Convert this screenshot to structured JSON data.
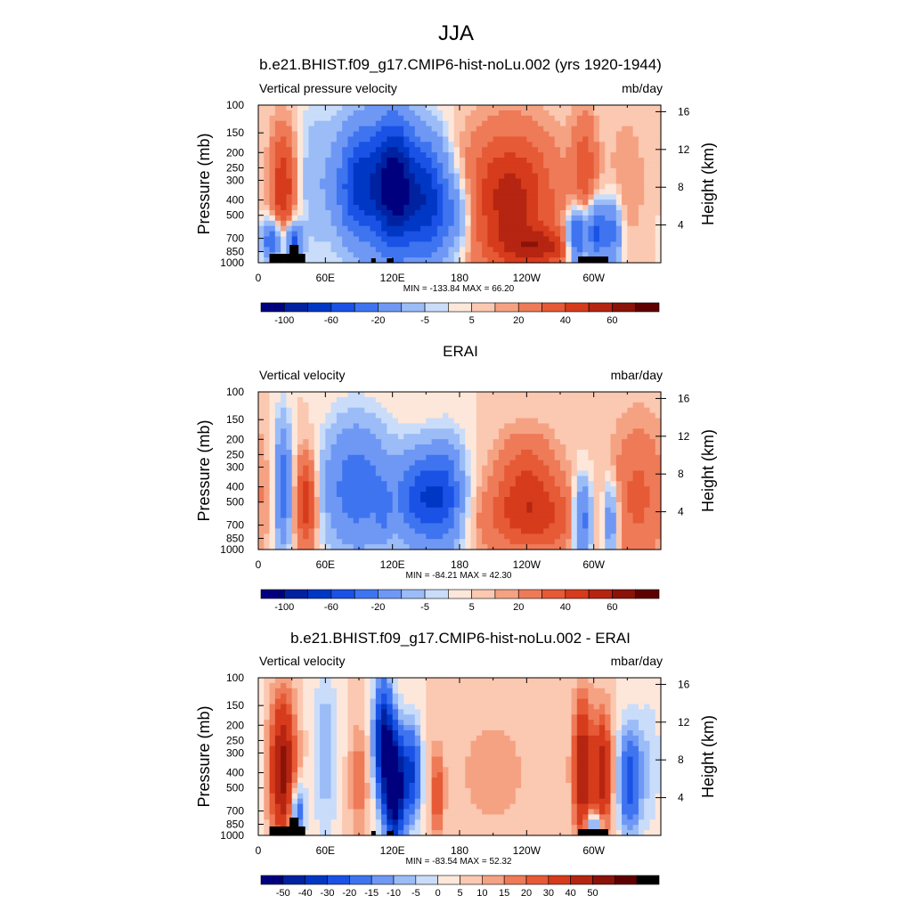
{
  "figure": {
    "title": "JJA",
    "colors": {
      "palette": [
        "#00007f",
        "#0022a0",
        "#0037c4",
        "#1a52e6",
        "#3f74f0",
        "#6e98f4",
        "#9bbcf7",
        "#c9dcfa",
        "#fde7da",
        "#fbc8b1",
        "#f5a283",
        "#ee7a58",
        "#e65a36",
        "#d63b1c",
        "#b52511",
        "#8b1208",
        "#5e0000"
      ],
      "contour": "#000000"
    }
  },
  "chart_data": [
    {
      "type": "heatmap",
      "name": "model",
      "title": "b.e21.BHIST.f09_g17.CMIP6-hist-noLu.002 (yrs 1920-1944)",
      "left_label": "Vertical pressure velocity",
      "right_label": "mb/day",
      "ylabel": "Pressure (mb)",
      "y2label": "Height (km)",
      "x_ticks": [
        "0",
        "60E",
        "120E",
        "180",
        "120W",
        "60W"
      ],
      "x_tick_lon": [
        0,
        60,
        120,
        180,
        240,
        300
      ],
      "xlim": [
        0,
        360
      ],
      "y_ticks": [
        "100",
        "150",
        "200",
        "250",
        "300",
        "400",
        "500",
        "700",
        "850",
        "1000"
      ],
      "y_tick_p": [
        100,
        150,
        200,
        250,
        300,
        400,
        500,
        700,
        850,
        1000
      ],
      "ylim": [
        100,
        1000
      ],
      "y2_ticks": [
        "4",
        "8",
        "12",
        "16"
      ],
      "y2_tick_km": [
        4,
        8,
        12,
        16
      ],
      "stats": "MIN = -133.84  MAX =  66.20",
      "min": -133.84,
      "max": 66.2,
      "colorbar_levels": [
        -120,
        -100,
        -80,
        -60,
        -40,
        -20,
        -10,
        -5,
        0,
        5,
        10,
        20,
        30,
        40,
        50,
        60
      ],
      "colorbar_labels": [
        "-100",
        "-60",
        "-20",
        "-5",
        "5",
        "20",
        "40",
        "60"
      ],
      "colorbar_label_at": [
        1,
        3,
        5,
        7,
        9,
        11,
        13,
        15
      ],
      "terrain": true,
      "features": [
        {
          "lon": 22,
          "p_center": 330,
          "p_width": 200,
          "lon_width": 8,
          "amp": 40
        },
        {
          "lon": 12,
          "p_center": 720,
          "p_width": 150,
          "lon_width": 6,
          "amp": -60
        },
        {
          "lon": 32,
          "p_center": 750,
          "p_width": 150,
          "lon_width": 5,
          "amp": -70
        },
        {
          "lon": 50,
          "p_center": 300,
          "p_width": 250,
          "lon_width": 10,
          "amp": -15
        },
        {
          "lon": 92,
          "p_center": 320,
          "p_width": 200,
          "lon_width": 16,
          "amp": -90
        },
        {
          "lon": 122,
          "p_center": 320,
          "p_width": 220,
          "lon_width": 12,
          "amp": -120
        },
        {
          "lon": 150,
          "p_center": 400,
          "p_width": 250,
          "lon_width": 14,
          "amp": -90
        },
        {
          "lon": 175,
          "p_center": 500,
          "p_width": 200,
          "lon_width": 12,
          "amp": -30
        },
        {
          "lon": 225,
          "p_center": 400,
          "p_width": 300,
          "lon_width": 30,
          "amp": 45
        },
        {
          "lon": 255,
          "p_center": 800,
          "p_width": 150,
          "lon_width": 25,
          "amp": 30
        },
        {
          "lon": 285,
          "p_center": 700,
          "p_width": 200,
          "lon_width": 6,
          "amp": -80
        },
        {
          "lon": 302,
          "p_center": 650,
          "p_width": 200,
          "lon_width": 5,
          "amp": -70
        },
        {
          "lon": 316,
          "p_center": 650,
          "p_width": 220,
          "lon_width": 6,
          "amp": -50
        },
        {
          "lon": 292,
          "p_center": 250,
          "p_width": 150,
          "lon_width": 8,
          "amp": 25
        },
        {
          "lon": 330,
          "p_center": 300,
          "p_width": 200,
          "lon_width": 12,
          "amp": 10
        }
      ]
    },
    {
      "type": "heatmap",
      "name": "erai",
      "title": "ERAI",
      "left_label": "Vertical velocity",
      "right_label": "mbar/day",
      "ylabel": "Pressure (mb)",
      "y2label": "Height (km)",
      "x_ticks": [
        "0",
        "60E",
        "120E",
        "180",
        "120W",
        "60W"
      ],
      "x_tick_lon": [
        0,
        60,
        120,
        180,
        240,
        300
      ],
      "xlim": [
        0,
        360
      ],
      "y_ticks": [
        "100",
        "150",
        "200",
        "250",
        "300",
        "400",
        "500",
        "700",
        "850",
        "1000"
      ],
      "y_tick_p": [
        100,
        150,
        200,
        250,
        300,
        400,
        500,
        700,
        850,
        1000
      ],
      "ylim": [
        100,
        1000
      ],
      "y2_ticks": [
        "4",
        "8",
        "12",
        "16"
      ],
      "y2_tick_km": [
        4,
        8,
        12,
        16
      ],
      "stats": "MIN = -84.21  MAX =  42.30",
      "min": -84.21,
      "max": 42.3,
      "colorbar_levels": [
        -120,
        -100,
        -80,
        -60,
        -40,
        -20,
        -10,
        -5,
        0,
        5,
        10,
        20,
        30,
        40,
        50,
        60
      ],
      "colorbar_labels": [
        "-100",
        "-60",
        "-20",
        "-5",
        "5",
        "20",
        "40",
        "60"
      ],
      "colorbar_label_at": [
        1,
        3,
        5,
        7,
        9,
        11,
        13,
        15
      ],
      "terrain": false,
      "features": [
        {
          "lon": 22,
          "p_center": 400,
          "p_width": 250,
          "lon_width": 5,
          "amp": -55
        },
        {
          "lon": 43,
          "p_center": 500,
          "p_width": 250,
          "lon_width": 7,
          "amp": 40
        },
        {
          "lon": 88,
          "p_center": 400,
          "p_width": 250,
          "lon_width": 20,
          "amp": -55
        },
        {
          "lon": 112,
          "p_center": 600,
          "p_width": 200,
          "lon_width": 5,
          "amp": -20
        },
        {
          "lon": 150,
          "p_center": 470,
          "p_width": 220,
          "lon_width": 18,
          "amp": -80
        },
        {
          "lon": 170,
          "p_center": 450,
          "p_width": 250,
          "lon_width": 10,
          "amp": -30
        },
        {
          "lon": 240,
          "p_center": 330,
          "p_width": 150,
          "lon_width": 20,
          "amp": 25
        },
        {
          "lon": 245,
          "p_center": 650,
          "p_width": 250,
          "lon_width": 35,
          "amp": 30
        },
        {
          "lon": 290,
          "p_center": 650,
          "p_width": 250,
          "lon_width": 6,
          "amp": -60
        },
        {
          "lon": 315,
          "p_center": 650,
          "p_width": 250,
          "lon_width": 5,
          "amp": -40
        },
        {
          "lon": 340,
          "p_center": 450,
          "p_width": 350,
          "lon_width": 18,
          "amp": 22
        }
      ]
    },
    {
      "type": "heatmap",
      "name": "difference",
      "title": "b.e21.BHIST.f09_g17.CMIP6-hist-noLu.002 - ERAI",
      "left_label": "Vertical velocity",
      "right_label": "mbar/day",
      "ylabel": "Pressure (mb)",
      "y2label": "Height (km)",
      "x_ticks": [
        "0",
        "60E",
        "120E",
        "180",
        "120W",
        "60W"
      ],
      "x_tick_lon": [
        0,
        60,
        120,
        180,
        240,
        300
      ],
      "xlim": [
        0,
        360
      ],
      "y_ticks": [
        "100",
        "150",
        "200",
        "250",
        "300",
        "400",
        "500",
        "700",
        "850",
        "1000"
      ],
      "y_tick_p": [
        100,
        150,
        200,
        250,
        300,
        400,
        500,
        700,
        850,
        1000
      ],
      "ylim": [
        100,
        1000
      ],
      "y2_ticks": [
        "4",
        "8",
        "12",
        "16"
      ],
      "y2_tick_km": [
        4,
        8,
        12,
        16
      ],
      "stats": "MIN = -83.54  MAX =  52.32",
      "min": -83.54,
      "max": 52.32,
      "colorbar_levels": [
        -60,
        -50,
        -40,
        -30,
        -20,
        -15,
        -10,
        -5,
        0,
        5,
        10,
        15,
        20,
        30,
        40,
        50,
        60
      ],
      "colorbar_labels": [
        "-50",
        "-40",
        "-30",
        "-20",
        "-15",
        "-10",
        "-5",
        "0",
        "5",
        "10",
        "15",
        "20",
        "30",
        "40",
        "50"
      ],
      "colorbar_label_at": [
        1,
        2,
        3,
        4,
        5,
        6,
        7,
        8,
        9,
        10,
        11,
        12,
        13,
        14,
        15
      ],
      "terrain": true,
      "features": [
        {
          "lon": 22,
          "p_center": 380,
          "p_width": 280,
          "lon_width": 8,
          "amp": 45
        },
        {
          "lon": 35,
          "p_center": 700,
          "p_width": 200,
          "lon_width": 5,
          "amp": -30
        },
        {
          "lon": 60,
          "p_center": 300,
          "p_width": 250,
          "lon_width": 8,
          "amp": -15
        },
        {
          "lon": 90,
          "p_center": 450,
          "p_width": 250,
          "lon_width": 6,
          "amp": 15
        },
        {
          "lon": 112,
          "p_center": 250,
          "p_width": 150,
          "lon_width": 6,
          "amp": -60
        },
        {
          "lon": 122,
          "p_center": 500,
          "p_width": 280,
          "lon_width": 6,
          "amp": -80
        },
        {
          "lon": 137,
          "p_center": 400,
          "p_width": 200,
          "lon_width": 6,
          "amp": -40
        },
        {
          "lon": 160,
          "p_center": 550,
          "p_width": 250,
          "lon_width": 4,
          "amp": 20
        },
        {
          "lon": 210,
          "p_center": 400,
          "p_width": 300,
          "lon_width": 30,
          "amp": 7
        },
        {
          "lon": 290,
          "p_center": 380,
          "p_width": 280,
          "lon_width": 6,
          "amp": 40
        },
        {
          "lon": 308,
          "p_center": 400,
          "p_width": 250,
          "lon_width": 6,
          "amp": 35
        },
        {
          "lon": 300,
          "p_center": 850,
          "p_width": 100,
          "lon_width": 5,
          "amp": -30
        },
        {
          "lon": 332,
          "p_center": 450,
          "p_width": 250,
          "lon_width": 7,
          "amp": -35
        },
        {
          "lon": 350,
          "p_center": 350,
          "p_width": 250,
          "lon_width": 8,
          "amp": -10
        }
      ]
    }
  ]
}
